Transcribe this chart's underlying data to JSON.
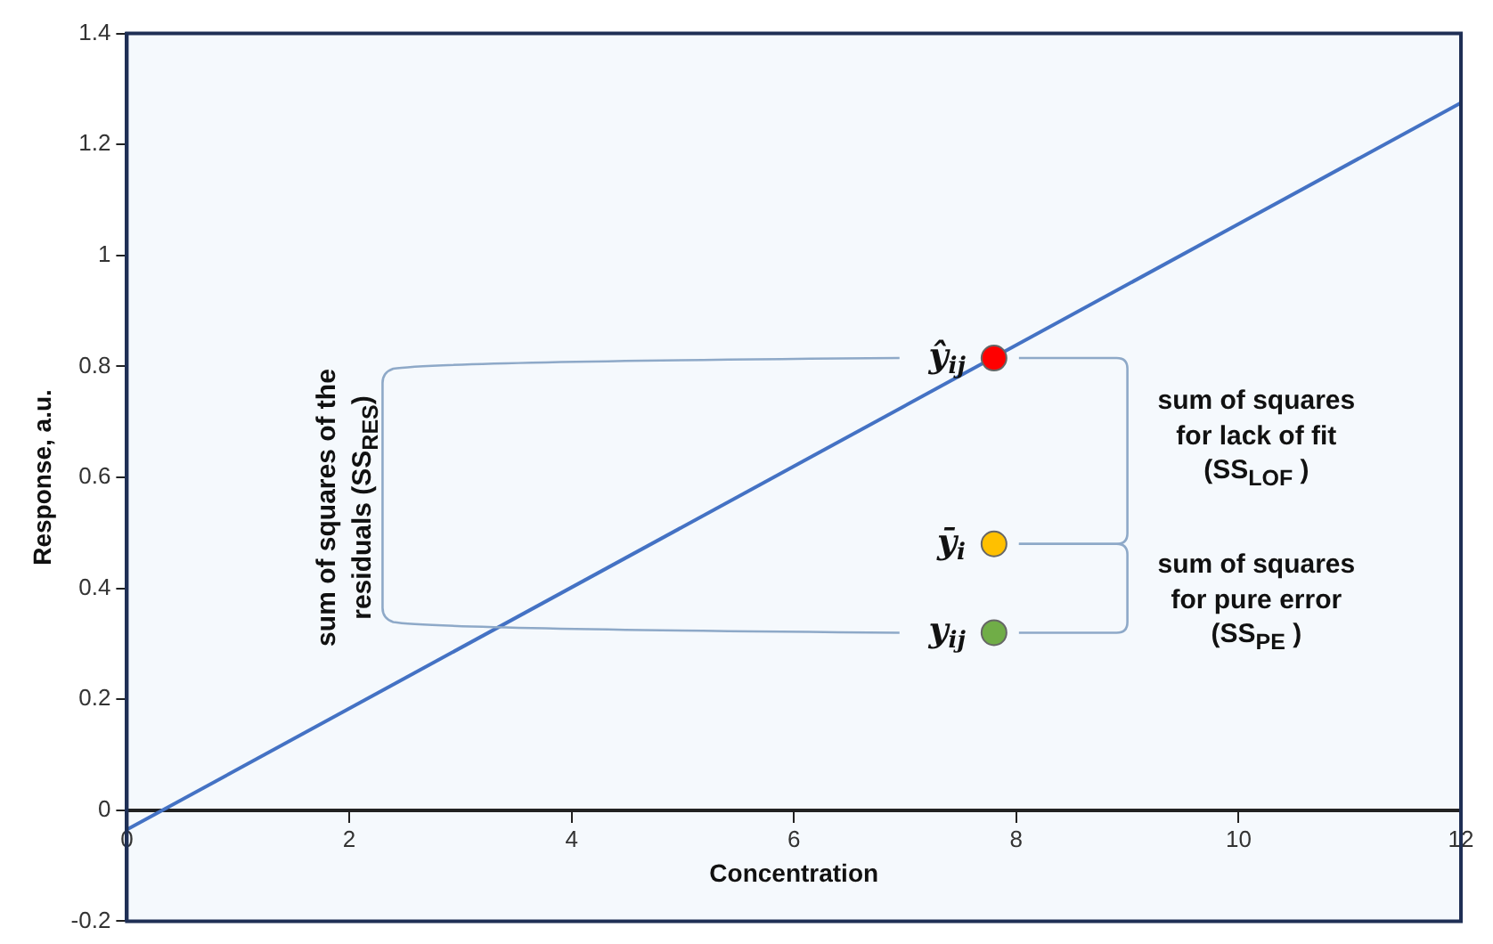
{
  "chart_data": {
    "type": "scatter",
    "xlabel": "Concentration",
    "ylabel": "Response, a.u.",
    "xlim": [
      0,
      12
    ],
    "ylim": [
      -0.2,
      1.4
    ],
    "xticks": [
      0,
      2,
      4,
      6,
      8,
      10,
      12
    ],
    "yticks": [
      -0.2,
      0,
      0.2,
      0.4,
      0.6,
      0.8,
      1,
      1.2,
      1.4
    ],
    "marker": "circle",
    "legend": false,
    "series": [
      {
        "type": "line",
        "color": "#4472c4",
        "x": [
          0,
          12
        ],
        "values": [
          -0.035,
          1.275
        ],
        "marker": "none"
      },
      {
        "color": "#ff0000",
        "x": [
          7.8
        ],
        "values": [
          0.815
        ]
      },
      {
        "color": "#ffc000",
        "x": [
          7.8
        ],
        "values": [
          0.48
        ]
      },
      {
        "color": "#70ad47",
        "x": [
          7.8
        ],
        "values": [
          0.32
        ]
      }
    ],
    "annotations": [
      "ŷ$_{ij}$",
      "ȳ$_{i}$",
      "y$_{ij}$",
      "sum of squares for lack of fit (SS$_{LOF}$ )",
      "sum of squares for pure error (SS$_{PE}$ )",
      "sum of squares of the residuals (SS$_{RES}$)"
    ]
  }
}
